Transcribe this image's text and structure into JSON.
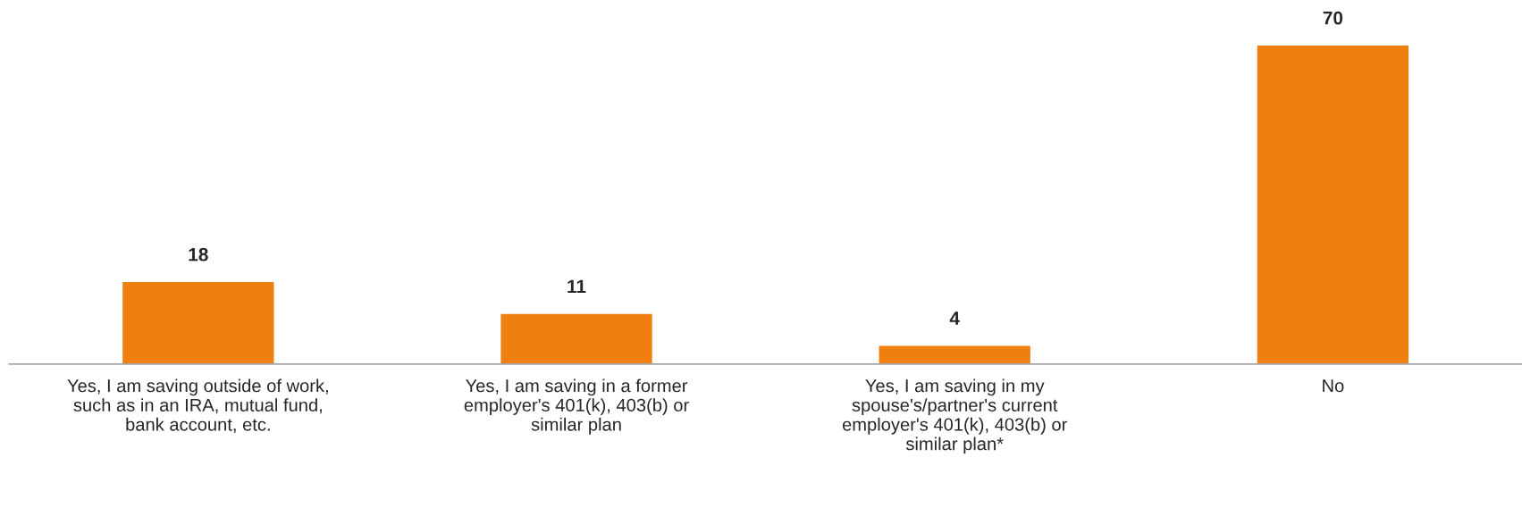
{
  "chart_data": {
    "type": "bar",
    "categories": [
      "Yes, I am saving outside of work,\nsuch as in an IRA, mutual fund,\nbank account, etc.",
      "Yes, I am saving in a former\nemployer's 401(k), 403(b) or\nsimilar plan",
      "Yes, I am saving in my\nspouse's/partner's current\nemployer's 401(k), 403(b) or\nsimilar plan*",
      "No"
    ],
    "values": [
      18,
      11,
      4,
      70
    ],
    "color": "#ef7f10",
    "data_labels": true,
    "grid": false,
    "legend": false
  }
}
